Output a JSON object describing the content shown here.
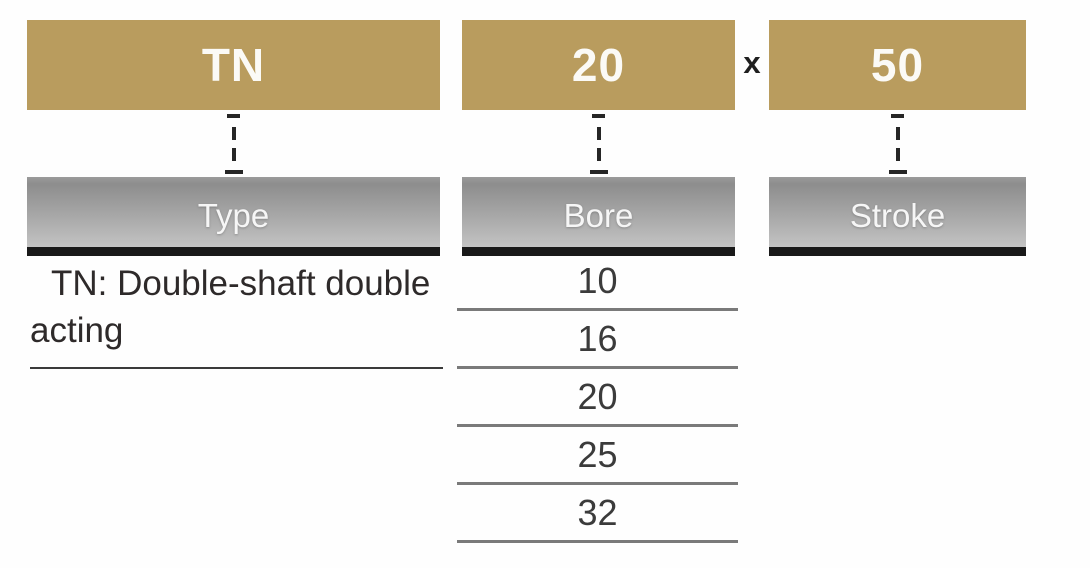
{
  "diagram": {
    "code_boxes": [
      {
        "code": "TN",
        "label": "Type"
      },
      {
        "code": "20",
        "label": "Bore"
      },
      {
        "code": "50",
        "label": "Stroke"
      }
    ],
    "separator": "x",
    "type_note": {
      "line1": "TN: Double-shaft double",
      "line2": "acting",
      "full_text": "TN: Double-shaft double acting"
    },
    "bore_values": [
      "10",
      "16",
      "20",
      "25",
      "32"
    ],
    "colors": {
      "code_box_tan": "#b99c5e",
      "label_bar_gradient_top": "#8d8d8d",
      "label_bar_gradient_bottom": "#c3c3c3",
      "label_bar_underline_black": "#191919",
      "bore_rule_gray": "#7a7a7a",
      "note_rule_dark": "#3a3a3a"
    }
  }
}
